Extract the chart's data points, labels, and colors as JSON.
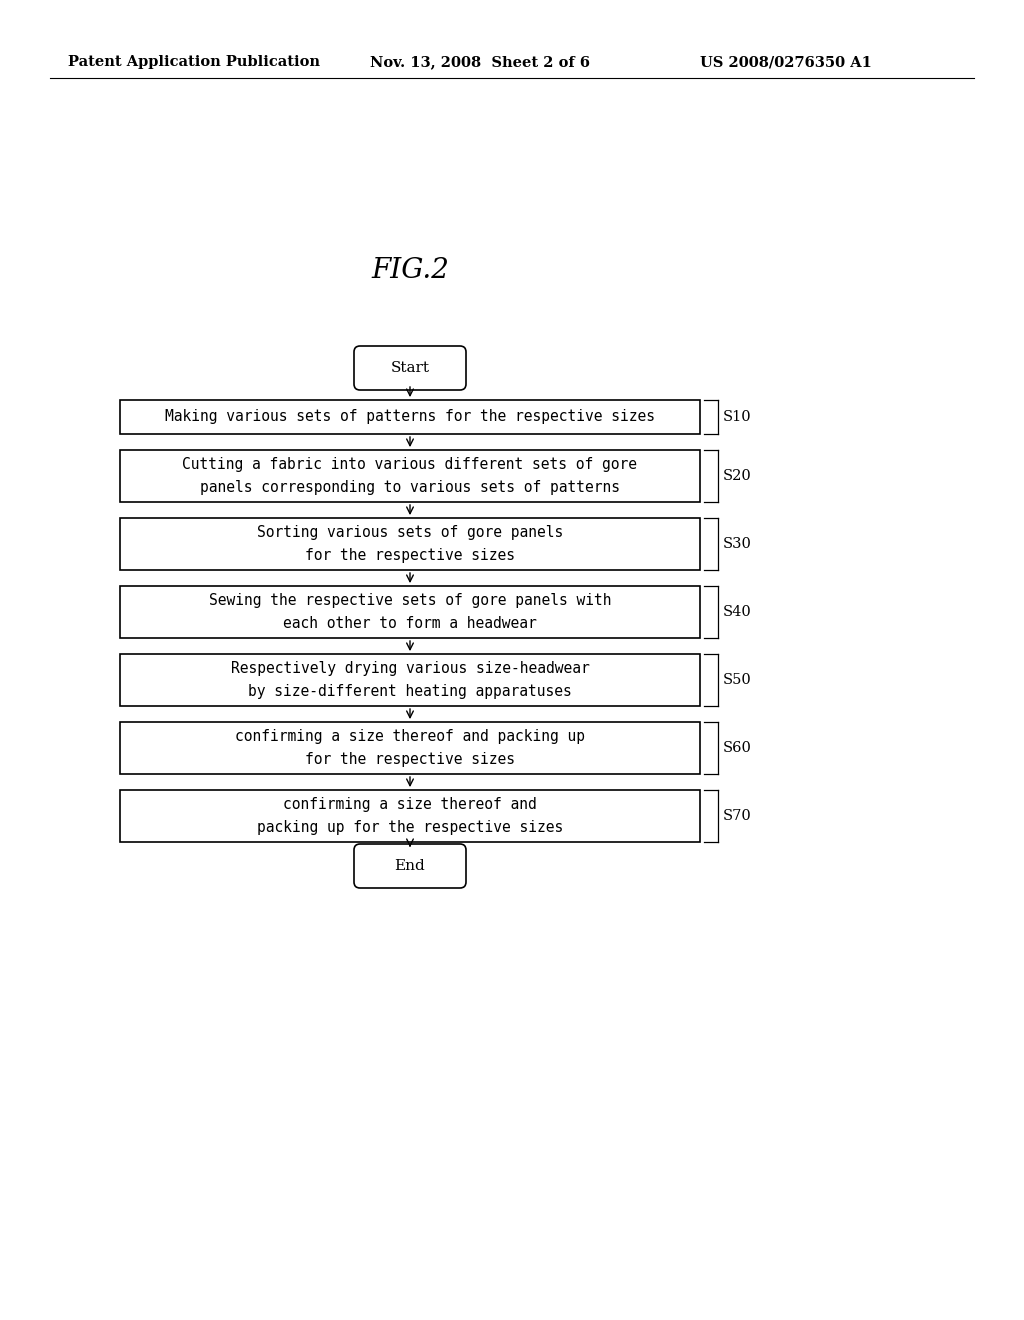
{
  "bg_color": "#ffffff",
  "header_left": "Patent Application Publication",
  "header_mid": "Nov. 13, 2008  Sheet 2 of 6",
  "header_right": "US 2008/0276350 A1",
  "fig_title": "FIG.2",
  "start_label": "Start",
  "end_label": "End",
  "steps": [
    {
      "lines": [
        "Making various sets of patterns for the respective sizes"
      ],
      "tag": "S10",
      "single_line": true
    },
    {
      "lines": [
        "Cutting a fabric into various different sets of gore",
        "panels corresponding to various sets of patterns"
      ],
      "tag": "S20",
      "single_line": false
    },
    {
      "lines": [
        "Sorting various sets of gore panels",
        "for the respective sizes"
      ],
      "tag": "S30",
      "single_line": false
    },
    {
      "lines": [
        "Sewing the respective sets of gore panels with",
        "each other to form a headwear"
      ],
      "tag": "S40",
      "single_line": false
    },
    {
      "lines": [
        "Respectively drying various size-headwear",
        "by size-different heating apparatuses"
      ],
      "tag": "S50",
      "single_line": false
    },
    {
      "lines": [
        "confirming a size thereof and packing up",
        "for the respective sizes"
      ],
      "tag": "S60",
      "single_line": false
    },
    {
      "lines": [
        "confirming a size thereof and",
        "packing up for the respective sizes"
      ],
      "tag": "S70",
      "single_line": false
    }
  ],
  "text_color": "#000000",
  "box_edge_color": "#000000",
  "arrow_color": "#000000",
  "header_fontsize": 10.5,
  "fig_title_fontsize": 20,
  "step_fontsize": 10.5,
  "tag_fontsize": 10.5,
  "terminal_fontsize": 11
}
